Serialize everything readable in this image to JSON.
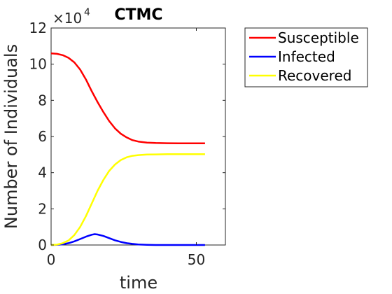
{
  "chart_data": {
    "type": "line",
    "title": "CTMC",
    "xlabel": "time",
    "ylabel": "Number of Individuals",
    "y_multiplier": "×10",
    "y_exponent": "4",
    "xlim": [
      0,
      60
    ],
    "ylim": [
      0,
      12
    ],
    "xticks": [
      0,
      50
    ],
    "yticks": [
      0,
      2,
      4,
      6,
      8,
      10,
      12
    ],
    "legend_position": "outside-top-right",
    "grid": false,
    "series": [
      {
        "name": "Susceptible",
        "color": "#ff0000",
        "x": [
          0,
          2,
          4,
          6,
          8,
          10,
          12,
          14,
          16,
          18,
          20,
          22,
          24,
          26,
          28,
          30,
          33,
          36,
          40,
          45,
          50,
          53
        ],
        "y": [
          10.6,
          10.57,
          10.5,
          10.35,
          10.1,
          9.7,
          9.15,
          8.5,
          7.9,
          7.35,
          6.85,
          6.45,
          6.15,
          5.95,
          5.8,
          5.72,
          5.66,
          5.64,
          5.63,
          5.62,
          5.62,
          5.62
        ]
      },
      {
        "name": "Infected",
        "color": "#0000ff",
        "x": [
          0,
          2,
          4,
          6,
          8,
          10,
          12,
          14,
          15,
          16,
          18,
          20,
          22,
          24,
          26,
          28,
          30,
          33,
          36,
          40,
          45,
          50,
          53
        ],
        "y": [
          0,
          0.01,
          0.04,
          0.1,
          0.2,
          0.33,
          0.46,
          0.57,
          0.6,
          0.58,
          0.5,
          0.38,
          0.26,
          0.17,
          0.1,
          0.06,
          0.03,
          0.01,
          0.0,
          0.0,
          0.0,
          0.0,
          0.0
        ]
      },
      {
        "name": "Recovered",
        "color": "#ffff00",
        "x": [
          0,
          2,
          4,
          6,
          8,
          10,
          12,
          14,
          16,
          18,
          20,
          22,
          24,
          26,
          28,
          30,
          33,
          36,
          40,
          45,
          50,
          53
        ],
        "y": [
          0,
          0.02,
          0.1,
          0.25,
          0.55,
          1.0,
          1.6,
          2.3,
          3.0,
          3.6,
          4.1,
          4.45,
          4.7,
          4.85,
          4.93,
          4.97,
          5.0,
          5.01,
          5.02,
          5.02,
          5.02,
          5.02
        ]
      }
    ]
  }
}
